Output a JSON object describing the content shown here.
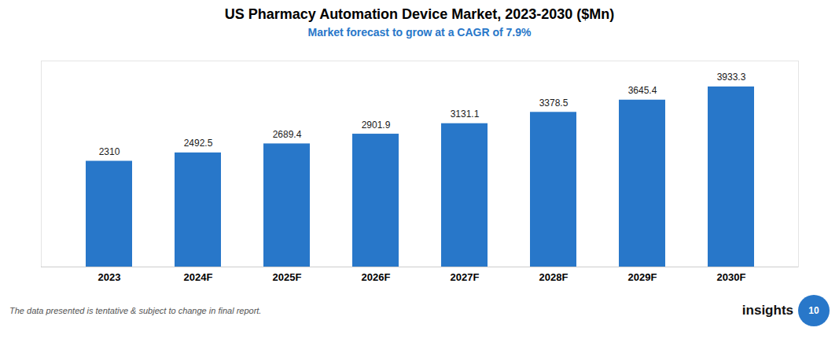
{
  "chart_data": {
    "type": "bar",
    "title": "US Pharmacy Automation Device Market, 2023-2030 ($Mn)",
    "subtitle": "Market forecast to grow at a CAGR of 7.9%",
    "categories": [
      "2023",
      "2024F",
      "2025F",
      "2026F",
      "2027F",
      "2028F",
      "2029F",
      "2030F"
    ],
    "values": [
      2310,
      2492.5,
      2689.4,
      2901.9,
      3131.1,
      3378.5,
      3645.4,
      3933.3
    ],
    "color": "#2877C9",
    "ylim": [
      0,
      4500
    ],
    "grid": false,
    "data_labels": true,
    "tick_labels": "x",
    "annotations": [
      "The data presented is tentative & subject to change in final report.",
      "insights",
      "10"
    ]
  }
}
